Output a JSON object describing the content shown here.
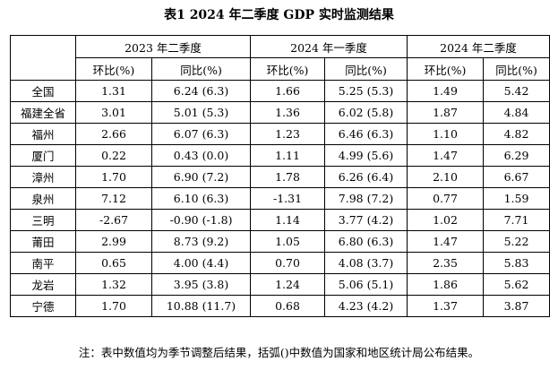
{
  "title": "表1  2024 年二季度 GDP 实时监测结果",
  "periods": [
    "2023 年二季度",
    "2024 年一季度",
    "2024 年二季度"
  ],
  "metrics": [
    "环比(%)",
    "同比(%)"
  ],
  "rows": [
    {
      "region": "全国",
      "values": [
        "1.31",
        "6.24 (6.3)",
        "1.66",
        "5.25 (5.3)",
        "1.49",
        "5.42"
      ]
    },
    {
      "region": "福建全省",
      "values": [
        "3.01",
        "5.01 (5.3)",
        "1.36",
        "6.02 (5.8)",
        "1.87",
        "4.84"
      ]
    },
    {
      "region": "福州",
      "values": [
        "2.66",
        "6.07 (6.3)",
        "1.23",
        "6.46 (6.3)",
        "1.10",
        "4.82"
      ]
    },
    {
      "region": "厦门",
      "values": [
        "0.22",
        "0.43 (0.0)",
        "1.11",
        "4.99 (5.6)",
        "1.47",
        "6.29"
      ]
    },
    {
      "region": "漳州",
      "values": [
        "1.70",
        "6.90 (7.2)",
        "1.78",
        "6.26 (6.4)",
        "2.10",
        "6.67"
      ]
    },
    {
      "region": "泉州",
      "values": [
        "7.12",
        "6.10 (6.3)",
        "-1.31",
        "7.98 (7.2)",
        "0.77",
        "1.59"
      ]
    },
    {
      "region": "三明",
      "values": [
        "-2.67",
        "-0.90 (-1.8)",
        "1.14",
        "3.77 (4.2)",
        "1.02",
        "7.71"
      ]
    },
    {
      "region": "莆田",
      "values": [
        "2.99",
        "8.73 (9.2)",
        "1.05",
        "6.80 (6.3)",
        "1.47",
        "5.22"
      ]
    },
    {
      "region": "南平",
      "values": [
        "0.65",
        "4.00 (4.4)",
        "0.70",
        "4.08 (3.7)",
        "2.35",
        "5.83"
      ]
    },
    {
      "region": "龙岩",
      "values": [
        "1.32",
        "3.95 (3.8)",
        "1.24",
        "5.06 (5.1)",
        "1.86",
        "5.62"
      ]
    },
    {
      "region": "宁德",
      "values": [
        "1.70",
        "10.88 (11.7)",
        "0.68",
        "4.23 (4.2)",
        "1.37",
        "3.87"
      ]
    }
  ],
  "note": "注：表中数值均为季节调整后结果，括弧()中数值为国家和地区统计局公布结果。"
}
